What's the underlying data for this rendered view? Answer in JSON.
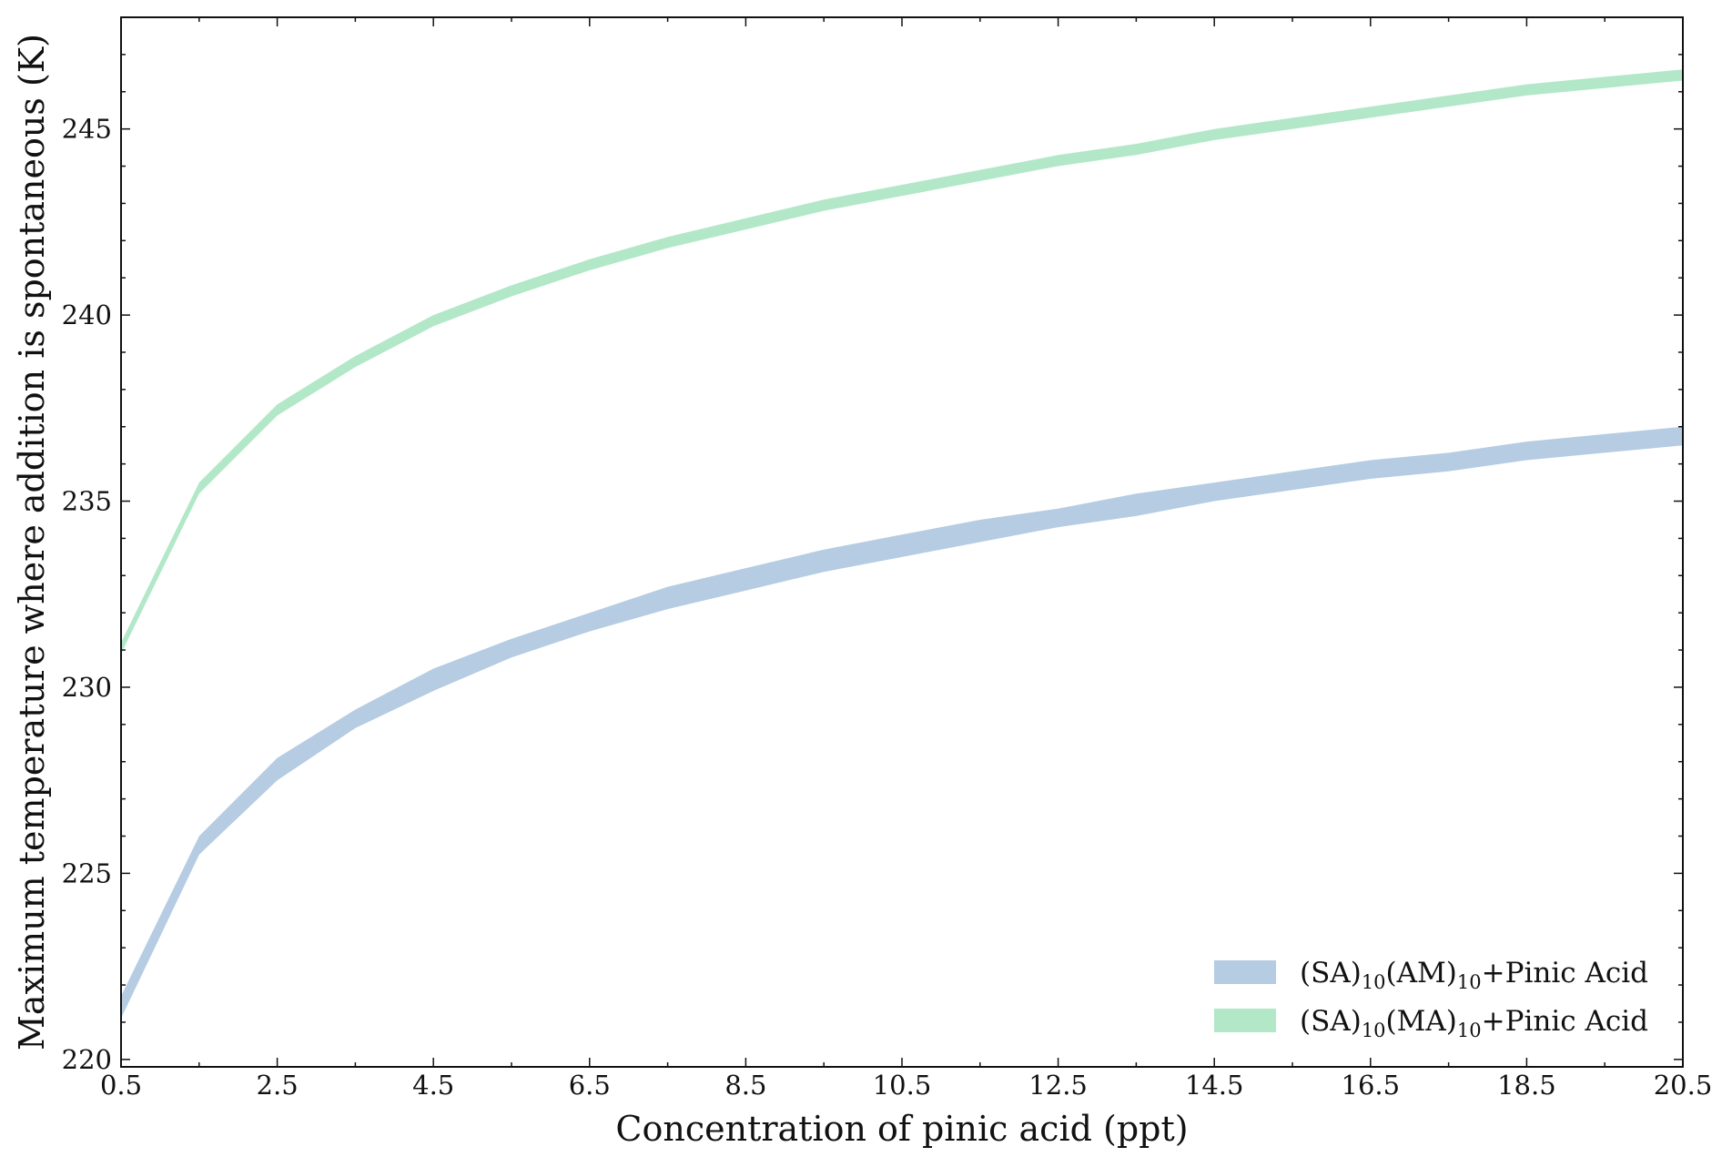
{
  "chart_data": {
    "type": "area",
    "x": [
      0.5,
      1.5,
      2.5,
      3.5,
      4.5,
      5.5,
      6.5,
      7.5,
      8.5,
      9.5,
      10.5,
      11.5,
      12.5,
      13.5,
      14.5,
      15.5,
      16.5,
      17.5,
      18.5,
      19.5,
      20.5
    ],
    "xlabel": "Concentration of pinic acid (ppt)",
    "ylabel": "Maximum temperature where addition is spontaneous (K)",
    "xlim": [
      0.5,
      20.5
    ],
    "ylim": [
      219.8,
      248.0
    ],
    "xticks": [
      "0.5",
      "2.5",
      "4.5",
      "6.5",
      "8.5",
      "10.5",
      "12.5",
      "14.5",
      "16.5",
      "18.5",
      "20.5"
    ],
    "xtick_values": [
      0.5,
      2.5,
      4.5,
      6.5,
      8.5,
      10.5,
      12.5,
      14.5,
      16.5,
      18.5,
      20.5
    ],
    "yticks": [
      "220",
      "225",
      "230",
      "235",
      "240",
      "245"
    ],
    "ytick_values": [
      220,
      225,
      230,
      235,
      240,
      245
    ],
    "grid": false,
    "legend_position": "lower-right",
    "series": [
      {
        "name": "(SA)10(AM)10+Pinic Acid",
        "legend": {
          "a": "(SA)",
          "b": "10",
          "c": "(AM)",
          "d": "10",
          "e": "+Pinic Acid"
        },
        "color": "#b5cce3",
        "lower": [
          221.1,
          225.5,
          227.5,
          228.9,
          229.9,
          230.8,
          231.5,
          232.1,
          232.6,
          233.1,
          233.5,
          233.9,
          234.3,
          234.6,
          235.0,
          235.3,
          235.6,
          235.8,
          236.1,
          236.3,
          236.5
        ],
        "upper": [
          221.7,
          226.0,
          228.1,
          229.4,
          230.5,
          231.3,
          232.0,
          232.7,
          233.2,
          233.7,
          234.1,
          234.5,
          234.8,
          235.2,
          235.5,
          235.8,
          236.1,
          236.3,
          236.6,
          236.8,
          237.0
        ]
      },
      {
        "name": "(SA)10(MA)10+Pinic Acid",
        "legend": {
          "a": "(SA)",
          "b": "10",
          "c": "(MA)",
          "d": "10",
          "e": "+Pinic Acid"
        },
        "color": "#b2e8c8",
        "lower": [
          230.9,
          235.2,
          237.3,
          238.6,
          239.7,
          240.5,
          241.2,
          241.8,
          242.3,
          242.8,
          243.2,
          243.6,
          244.0,
          244.3,
          244.7,
          245.0,
          245.3,
          245.6,
          245.9,
          246.1,
          246.3
        ],
        "upper": [
          231.2,
          235.5,
          237.6,
          238.9,
          240.0,
          240.8,
          241.5,
          242.1,
          242.6,
          243.1,
          243.5,
          243.9,
          244.3,
          244.6,
          245.0,
          245.3,
          245.6,
          245.9,
          246.2,
          246.4,
          246.6
        ]
      }
    ]
  }
}
